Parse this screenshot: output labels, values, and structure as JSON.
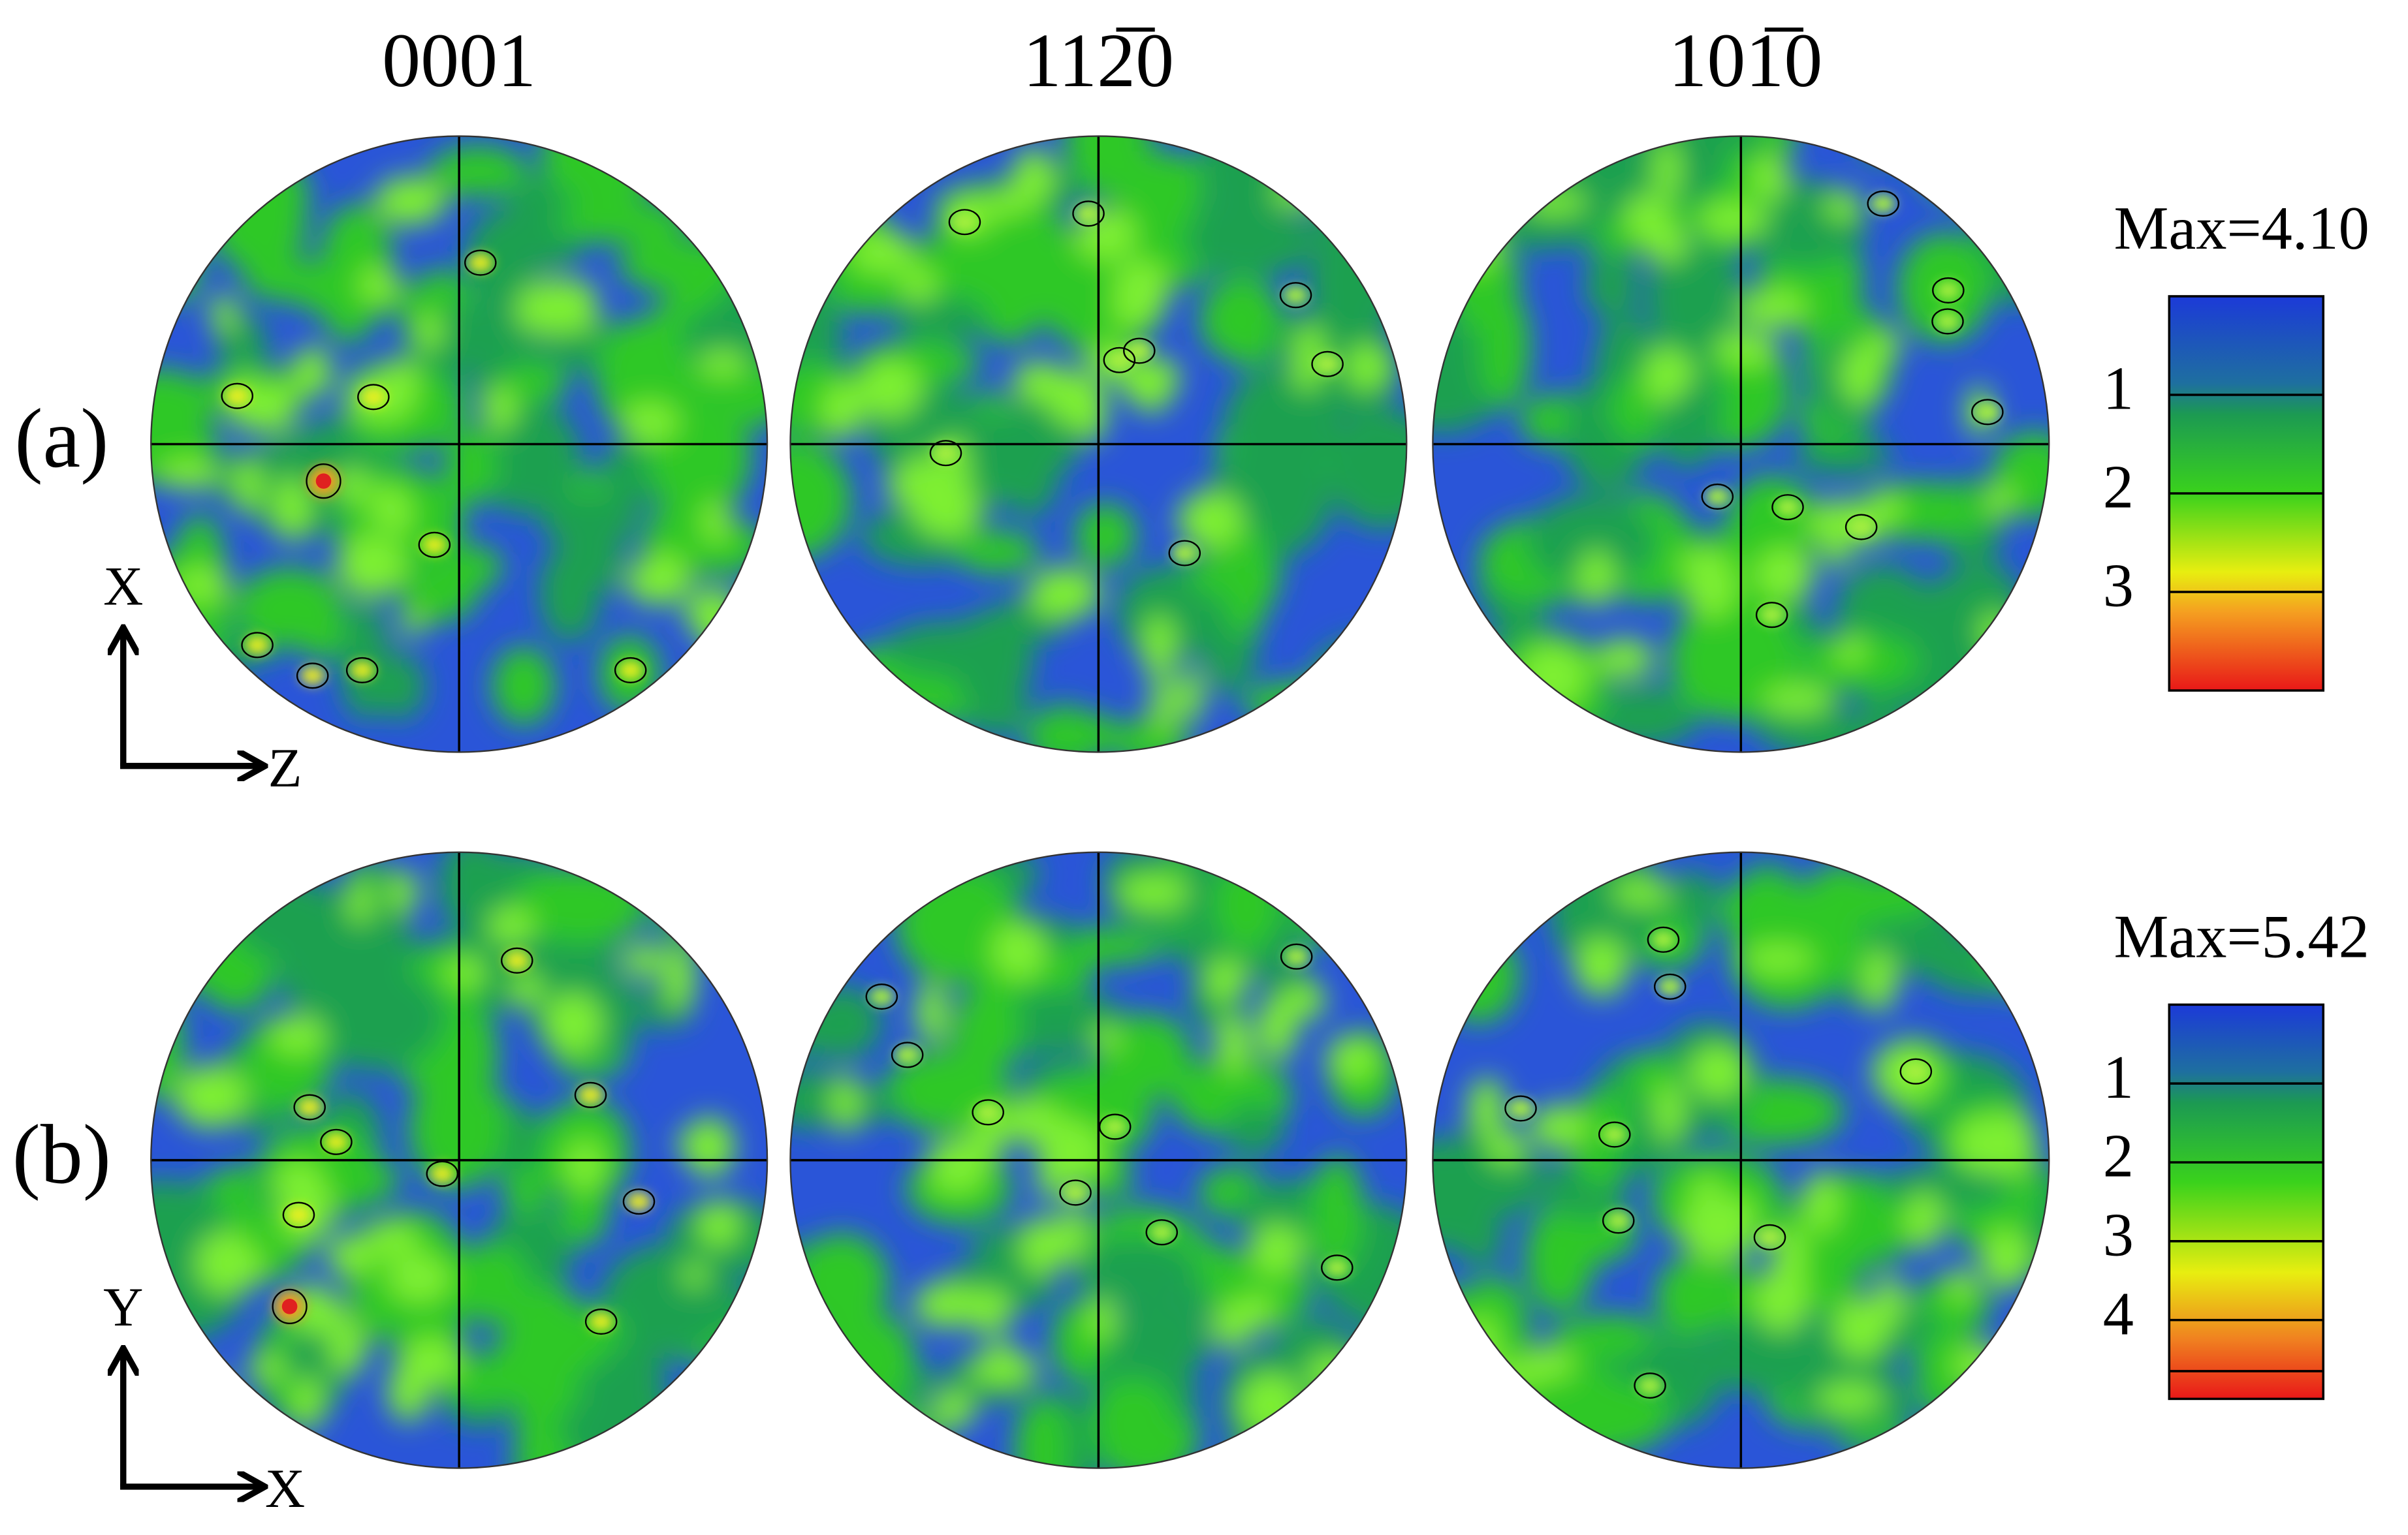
{
  "headers": [
    "0001",
    "112̅0",
    "101̅0"
  ],
  "rows": [
    {
      "label": "(a)",
      "axis_up": "X",
      "axis_right": "Z",
      "legend": {
        "max": "Max=4.10",
        "levels": [
          "1",
          "2",
          "3"
        ]
      }
    },
    {
      "label": "(b)",
      "axis_up": "Y",
      "axis_right": "X",
      "legend": {
        "max": "Max=5.42",
        "levels": [
          "1",
          "2",
          "3",
          "4"
        ]
      }
    }
  ]
}
